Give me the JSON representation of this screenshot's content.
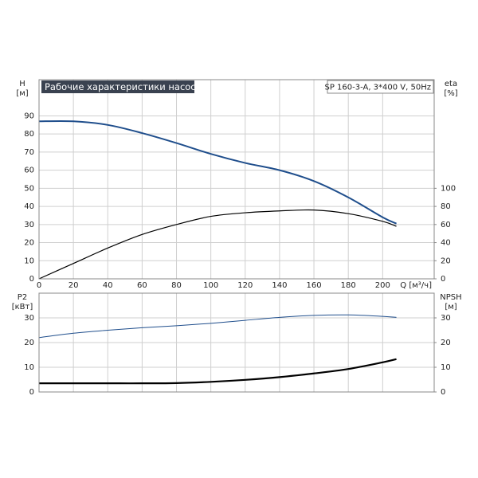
{
  "chart_data": [
    {
      "type": "line",
      "title": "Рабочие характеристики насоса",
      "annotation": "SP 160-3-A, 3*400 V, 50Hz",
      "xlabel": "Q [м³/ч]",
      "ylabel": "H",
      "yunit": "[м]",
      "y2label": "eta",
      "y2unit": "[%]",
      "x": [
        0,
        20,
        40,
        60,
        80,
        100,
        120,
        140,
        160,
        180,
        200,
        208
      ],
      "series": [
        {
          "color": "#1f4e8c",
          "line_width": 2,
          "values": [
            87,
            87,
            85,
            80.5,
            75,
            69,
            64,
            60,
            54,
            45,
            34,
            30.5
          ]
        },
        {
          "color": "#000000",
          "line_width": 1.2,
          "axis": "y2",
          "values": [
            0,
            17,
            34,
            49,
            60,
            69,
            73,
            75,
            76,
            72,
            63.5,
            58
          ]
        }
      ],
      "xlim": [
        0,
        230
      ],
      "xticks": [
        0,
        20,
        40,
        60,
        80,
        100,
        120,
        140,
        160,
        180,
        200
      ],
      "ylim": [
        0,
        110
      ],
      "yticks": [
        0,
        10,
        20,
        30,
        40,
        50,
        60,
        70,
        80,
        90
      ],
      "y2lim": [
        0,
        220
      ],
      "y2ticks": [
        0,
        20,
        40,
        60,
        80,
        100
      ],
      "grid": true
    },
    {
      "type": "line",
      "ylabel": "P2",
      "yunit": "[кВт]",
      "y2label": "NPSH",
      "y2unit": "[м]",
      "x": [
        0,
        20,
        40,
        60,
        80,
        100,
        120,
        140,
        160,
        180,
        200,
        208
      ],
      "series": [
        {
          "color": "#1f4e8c",
          "line_width": 1,
          "values": [
            22,
            23.8,
            25,
            26,
            26.8,
            27.8,
            29,
            30.2,
            31,
            31.2,
            30.6,
            30.2
          ]
        },
        {
          "color": "#000000",
          "line_width": 2.2,
          "axis": "y2",
          "values": [
            3.5,
            3.5,
            3.5,
            3.5,
            3.6,
            4.1,
            4.9,
            6,
            7.5,
            9.3,
            12,
            13.3
          ]
        }
      ],
      "xlim": [
        0,
        230
      ],
      "xticks": [
        0,
        20,
        40,
        60,
        80,
        100,
        120,
        140,
        160,
        180,
        200
      ],
      "ylim": [
        0,
        40
      ],
      "yticks": [
        0,
        10,
        20,
        30
      ],
      "y2lim": [
        0,
        40
      ],
      "y2ticks": [
        0,
        10,
        20,
        30
      ],
      "grid": true
    }
  ]
}
